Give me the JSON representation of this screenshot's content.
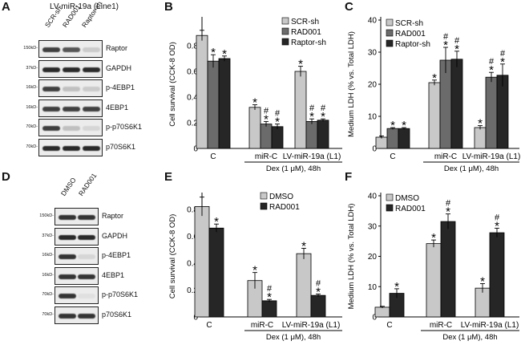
{
  "panels": {
    "A": "A",
    "B": "B",
    "C": "C",
    "D": "D",
    "E": "E",
    "F": "F"
  },
  "blotA": {
    "title": "LV-miR-19a (Line1)",
    "lanes": [
      "SCR-sh",
      "RAD001",
      "Raptor-sh"
    ],
    "rows": [
      {
        "kd": "150kD-",
        "label": "Raptor",
        "intensity": [
          0.8,
          0.7,
          0.15
        ]
      },
      {
        "kd": "37kD-",
        "label": "GAPDH",
        "intensity": [
          0.9,
          0.9,
          0.9
        ]
      },
      {
        "kd": "16kD-",
        "label": "p-4EBP1",
        "intensity": [
          0.8,
          0.2,
          0.15
        ]
      },
      {
        "kd": "16kD-",
        "label": "4EBP1",
        "intensity": [
          0.8,
          0.8,
          0.8
        ]
      },
      {
        "kd": "70kD-",
        "label": "p-p70S6K1",
        "intensity": [
          0.8,
          0.2,
          0.1
        ]
      },
      {
        "kd": "70kD-",
        "label": "p70S6K1",
        "intensity": [
          0.9,
          0.9,
          0.9
        ]
      }
    ]
  },
  "blotD": {
    "lanes": [
      "DMSO",
      "RAD001"
    ],
    "rows": [
      {
        "kd": "150kD-",
        "label": "Raptor",
        "intensity": [
          0.85,
          0.85
        ]
      },
      {
        "kd": "37kD-",
        "label": "GAPDH",
        "intensity": [
          0.9,
          0.9
        ]
      },
      {
        "kd": "16kD-",
        "label": "p-4EBP1",
        "intensity": [
          0.85,
          0.1
        ]
      },
      {
        "kd": "16kD-",
        "label": "4EBP1",
        "intensity": [
          0.85,
          0.85
        ]
      },
      {
        "kd": "70kD-",
        "label": "p-p70S6K1",
        "intensity": [
          0.85,
          0.05
        ]
      },
      {
        "kd": "70kD-",
        "label": "p70S6K1",
        "intensity": [
          0.85,
          0.85
        ]
      }
    ]
  },
  "chart_data": [
    {
      "id": "B",
      "type": "bar",
      "ylabel": "Cell survival (CCK-8 OD)",
      "ylim": [
        0,
        1
      ],
      "yticks": [
        0,
        0.2,
        0.4,
        0.6,
        0.8
      ],
      "categories": [
        "C",
        "miR-C",
        "LV-miR-19a (L1)"
      ],
      "group_caption": "Dex (1 μM), 48h",
      "legend": "top-right",
      "series": [
        {
          "name": "SCR-sh",
          "color": "#c8c8c8",
          "values": [
            0.88,
            0.32,
            0.6
          ],
          "errors": [
            0.04,
            0.02,
            0.04
          ],
          "marks": [
            "",
            "*",
            "*"
          ]
        },
        {
          "name": "RAD001",
          "color": "#6b6b6b",
          "values": [
            0.68,
            0.19,
            0.21
          ],
          "errors": [
            0.05,
            0.02,
            0.02
          ],
          "marks": [
            "*",
            "#*",
            "#*"
          ]
        },
        {
          "name": "Raptor-sh",
          "color": "#262626",
          "values": [
            0.7,
            0.17,
            0.22
          ],
          "errors": [
            0.02,
            0.02,
            0.01
          ],
          "marks": [
            "*",
            "#*",
            "#*"
          ]
        }
      ]
    },
    {
      "id": "C",
      "type": "bar",
      "ylabel": "Medium LDH (% vs. Total LDH)",
      "ylim": [
        0,
        40
      ],
      "yticks": [
        0,
        10,
        20,
        30,
        40
      ],
      "categories": [
        "C",
        "miR-C",
        "LV-miR-19a (L1)"
      ],
      "group_caption": "Dex (1 μM), 48h",
      "legend": "top-left",
      "series": [
        {
          "name": "SCR-sh",
          "color": "#c8c8c8",
          "values": [
            3.5,
            20.5,
            6.5
          ],
          "errors": [
            0.4,
            0.8,
            0.6
          ],
          "marks": [
            "",
            "*",
            "*"
          ]
        },
        {
          "name": "RAD001",
          "color": "#6b6b6b",
          "values": [
            6.2,
            27.5,
            22.2
          ],
          "errors": [
            0.3,
            4.0,
            1.5
          ],
          "marks": [
            "*",
            "#*",
            "#*"
          ]
        },
        {
          "name": "Raptor-sh",
          "color": "#262626",
          "values": [
            6.2,
            27.8,
            22.8
          ],
          "errors": [
            0.3,
            2.5,
            3.5
          ],
          "marks": [
            "*",
            "#*",
            "#*"
          ]
        }
      ]
    },
    {
      "id": "E",
      "type": "bar",
      "ylabel": "Cell survival (CCK-8 OD)",
      "ylim": [
        0,
        0.9
      ],
      "yticks": [
        0,
        0.2,
        0.4,
        0.6,
        0.8
      ],
      "categories": [
        "C",
        "miR-C",
        "LV-miR-19a (L1)"
      ],
      "group_caption": "Dex (1 μM), 48h",
      "legend": "top-center",
      "series": [
        {
          "name": "DMSO",
          "color": "#c8c8c8",
          "values": [
            0.82,
            0.27,
            0.47
          ],
          "errors": [
            0.07,
            0.06,
            0.04
          ],
          "marks": [
            "",
            "*",
            "*"
          ]
        },
        {
          "name": "RAD001",
          "color": "#262626",
          "values": [
            0.66,
            0.12,
            0.16
          ],
          "errors": [
            0.03,
            0.01,
            0.01
          ],
          "marks": [
            "*",
            "#*",
            "#*"
          ]
        }
      ]
    },
    {
      "id": "F",
      "type": "bar",
      "ylabel": "Medium LDH (% vs. Total LDH)",
      "ylim": [
        0,
        40
      ],
      "yticks": [
        0,
        10,
        20,
        30,
        40
      ],
      "categories": [
        "C",
        "miR-C",
        "LV-miR-19a (L1)"
      ],
      "group_caption": "Dex (1 μM), 48h",
      "legend": "top-left",
      "series": [
        {
          "name": "DMSO",
          "color": "#c8c8c8",
          "values": [
            3.2,
            24.2,
            9.5
          ],
          "errors": [
            0.3,
            1.2,
            1.5
          ],
          "marks": [
            "",
            "*",
            "*"
          ]
        },
        {
          "name": "RAD001",
          "color": "#262626",
          "values": [
            7.8,
            31.5,
            27.8
          ],
          "errors": [
            1.5,
            2.5,
            1.5
          ],
          "marks": [
            "*",
            "#*",
            "#*"
          ]
        }
      ]
    }
  ]
}
